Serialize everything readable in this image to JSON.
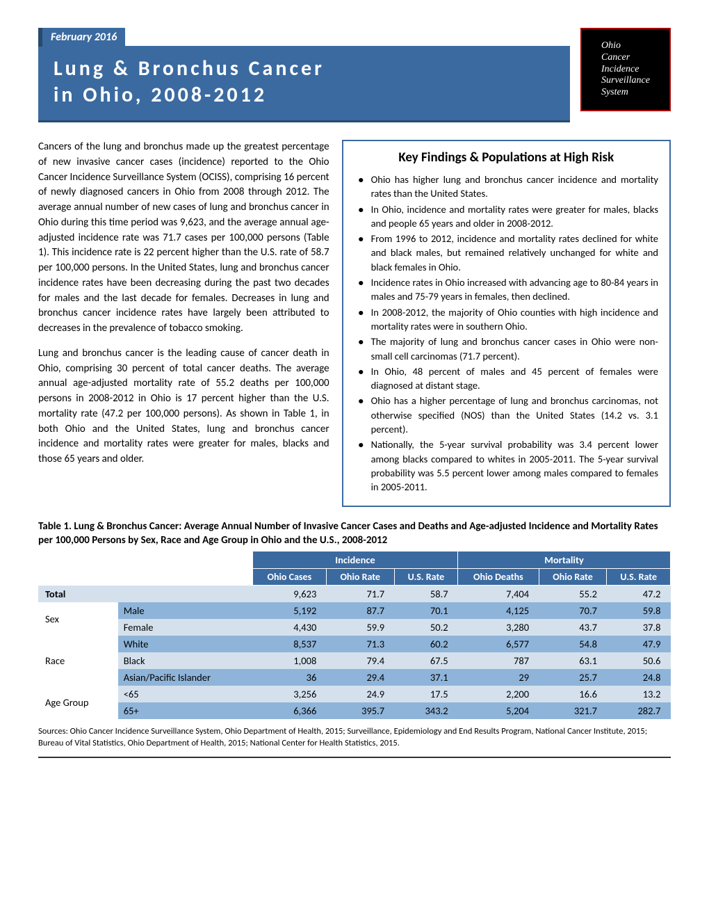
{
  "header": {
    "date_tab": "February 2016",
    "title_line1": "Lung & Bronchus Cancer",
    "title_line2": "in Ohio, 2008-2012",
    "logo_text": "Ohio\nCancer\nIncidence\nSurveillance\nSystem"
  },
  "colors": {
    "primary": "#3b6aa0",
    "primary_dark": "#264a70",
    "row_light": "#d4e1ed",
    "row_dark": "#8fb4d9"
  },
  "body": {
    "para1": "Cancers of the lung and bronchus made up the greatest percentage of new invasive cancer cases (incidence) reported to the Ohio Cancer Incidence Surveillance System (OCISS), comprising 16 percent of newly diagnosed cancers in Ohio from 2008 through 2012. The average annual number of new cases of lung and bronchus cancer in Ohio during this time period was 9,623, and the average annual age-adjusted incidence rate was 71.7 cases per 100,000 persons (Table 1). This incidence rate is 22 percent higher than the U.S. rate of 58.7 per 100,000 persons. In the United States, lung and bronchus cancer incidence rates have been decreasing during the past two decades for males and the last decade for females. Decreases in lung and bronchus cancer incidence rates have largely been attributed to decreases in the prevalence of tobacco smoking.",
    "para2": "Lung and bronchus cancer is the leading cause of cancer death in Ohio, comprising 30 percent of total cancer deaths. The average annual age-adjusted mortality rate of 55.2 deaths per 100,000 persons in 2008-2012 in Ohio is 17 percent higher than the U.S. mortality rate (47.2 per 100,000 persons). As shown in Table 1, in both Ohio and the United States, lung and bronchus cancer incidence and mortality rates were greater for males, blacks and those 65 years and older."
  },
  "keybox": {
    "title": "Key Findings & Populations at High Risk",
    "items": [
      "Ohio has higher lung and bronchus cancer incidence and mortality rates than the United States.",
      "In Ohio, incidence and mortality rates were greater for males, blacks and people 65 years and older in 2008-2012.",
      "From 1996 to 2012, incidence and mortality rates declined for white and black males, but remained relatively unchanged for white and black females in Ohio.",
      "Incidence rates in Ohio increased with advancing age to 80-84 years in males and 75-79 years in females, then declined.",
      "In 2008-2012, the majority of Ohio counties with high incidence and mortality rates were in southern Ohio.",
      "The majority of lung and bronchus cancer cases in Ohio were non-small cell carcinomas (71.7 percent).",
      "In Ohio, 48 percent of males and 45 percent of females were diagnosed at distant stage.",
      "Ohio has a higher percentage of lung and bronchus carcinomas, not otherwise specified (NOS) than the United States (14.2 vs. 3.1 percent).",
      "Nationally, the 5-year survival probability was 3.4 percent lower among blacks compared to whites in 2005-2011. The 5-year survival probability was 5.5 percent lower among males compared to females in 2005-2011."
    ]
  },
  "table": {
    "caption": "Table 1. Lung & Bronchus Cancer: Average Annual Number of Invasive Cancer Cases and Deaths and Age-adjusted Incidence and Mortality Rates per 100,000 Persons by Sex, Race and Age Group in Ohio and the U.S., 2008-2012",
    "group_headers": {
      "incidence": "Incidence",
      "mortality": "Mortality"
    },
    "col_headers": {
      "c1": "Ohio Cases",
      "c2": "Ohio Rate",
      "c3": "U.S. Rate",
      "c4": "Ohio Deaths",
      "c5": "Ohio Rate",
      "c6": "U.S. Rate"
    },
    "cats": {
      "sex": "Sex",
      "race": "Race",
      "age": "Age Group"
    },
    "rows": {
      "total": {
        "label": "Total",
        "v": [
          "9,623",
          "71.7",
          "58.7",
          "7,404",
          "55.2",
          "47.2"
        ]
      },
      "male": {
        "label": "Male",
        "v": [
          "5,192",
          "87.7",
          "70.1",
          "4,125",
          "70.7",
          "59.8"
        ]
      },
      "female": {
        "label": "Female",
        "v": [
          "4,430",
          "59.9",
          "50.2",
          "3,280",
          "43.7",
          "37.8"
        ]
      },
      "white": {
        "label": "White",
        "v": [
          "8,537",
          "71.3",
          "60.2",
          "6,577",
          "54.8",
          "47.9"
        ]
      },
      "black": {
        "label": "Black",
        "v": [
          "1,008",
          "79.4",
          "67.5",
          "787",
          "63.1",
          "50.6"
        ]
      },
      "api": {
        "label": "Asian/Pacific Islander",
        "v": [
          "36",
          "29.4",
          "37.1",
          "29",
          "25.7",
          "24.8"
        ]
      },
      "lt65": {
        "label": "<65",
        "v": [
          "3,256",
          "24.9",
          "17.5",
          "2,200",
          "16.6",
          "13.2"
        ]
      },
      "ge65": {
        "label": "65+",
        "v": [
          "6,366",
          "395.7",
          "343.2",
          "5,204",
          "321.7",
          "282.7"
        ]
      }
    }
  },
  "sources": "Sources: Ohio Cancer Incidence Surveillance System, Ohio Department of Health, 2015; Surveillance, Epidemiology and End Results Program, National Cancer Institute, 2015; Bureau of Vital Statistics, Ohio Department of Health, 2015; National Center for Health Statistics, 2015."
}
